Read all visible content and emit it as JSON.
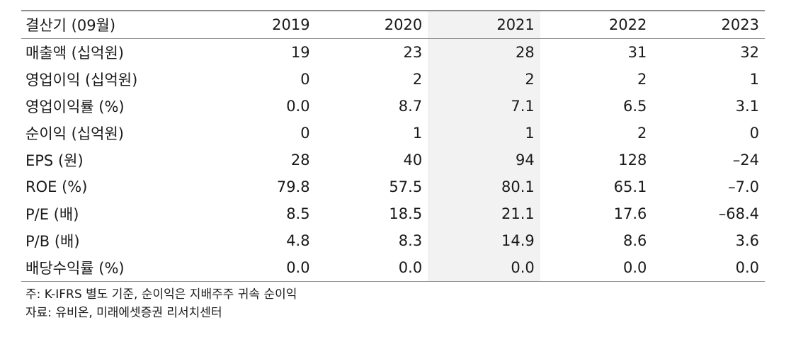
{
  "header": {
    "label": "결산기 (09월)",
    "years": [
      "2019",
      "2020",
      "2021",
      "2022",
      "2023"
    ]
  },
  "rows": [
    {
      "label": "매출액 (십억원)",
      "values": [
        "19",
        "23",
        "28",
        "31",
        "32"
      ]
    },
    {
      "label": "영업이익 (십억원)",
      "values": [
        "0",
        "2",
        "2",
        "2",
        "1"
      ]
    },
    {
      "label": "영업이익률 (%)",
      "values": [
        "0.0",
        "8.7",
        "7.1",
        "6.5",
        "3.1"
      ]
    },
    {
      "label": "순이익 (십억원)",
      "values": [
        "0",
        "1",
        "1",
        "2",
        "0"
      ]
    },
    {
      "label": "EPS (원)",
      "values": [
        "28",
        "40",
        "94",
        "128",
        "–24"
      ]
    },
    {
      "label": "ROE (%)",
      "values": [
        "79.8",
        "57.5",
        "80.1",
        "65.1",
        "–7.0"
      ]
    },
    {
      "label": "P/E (배)",
      "values": [
        "8.5",
        "18.5",
        "21.1",
        "17.6",
        "–68.4"
      ]
    },
    {
      "label": "P/B (배)",
      "values": [
        "4.8",
        "8.3",
        "14.9",
        "8.6",
        "3.6"
      ]
    },
    {
      "label": "배당수익률 (%)",
      "values": [
        "0.0",
        "0.0",
        "0.0",
        "0.0",
        "0.0"
      ]
    }
  ],
  "notes": {
    "note": "주: K-IFRS 별도 기준, 순이익은 지배주주 귀속 순이익",
    "source": "자료: 유비온, 미래에셋증권 리서치센터"
  },
  "colors": {
    "highlight_column": "#f2f2f2",
    "rule_lines": "#8c8c8c"
  }
}
